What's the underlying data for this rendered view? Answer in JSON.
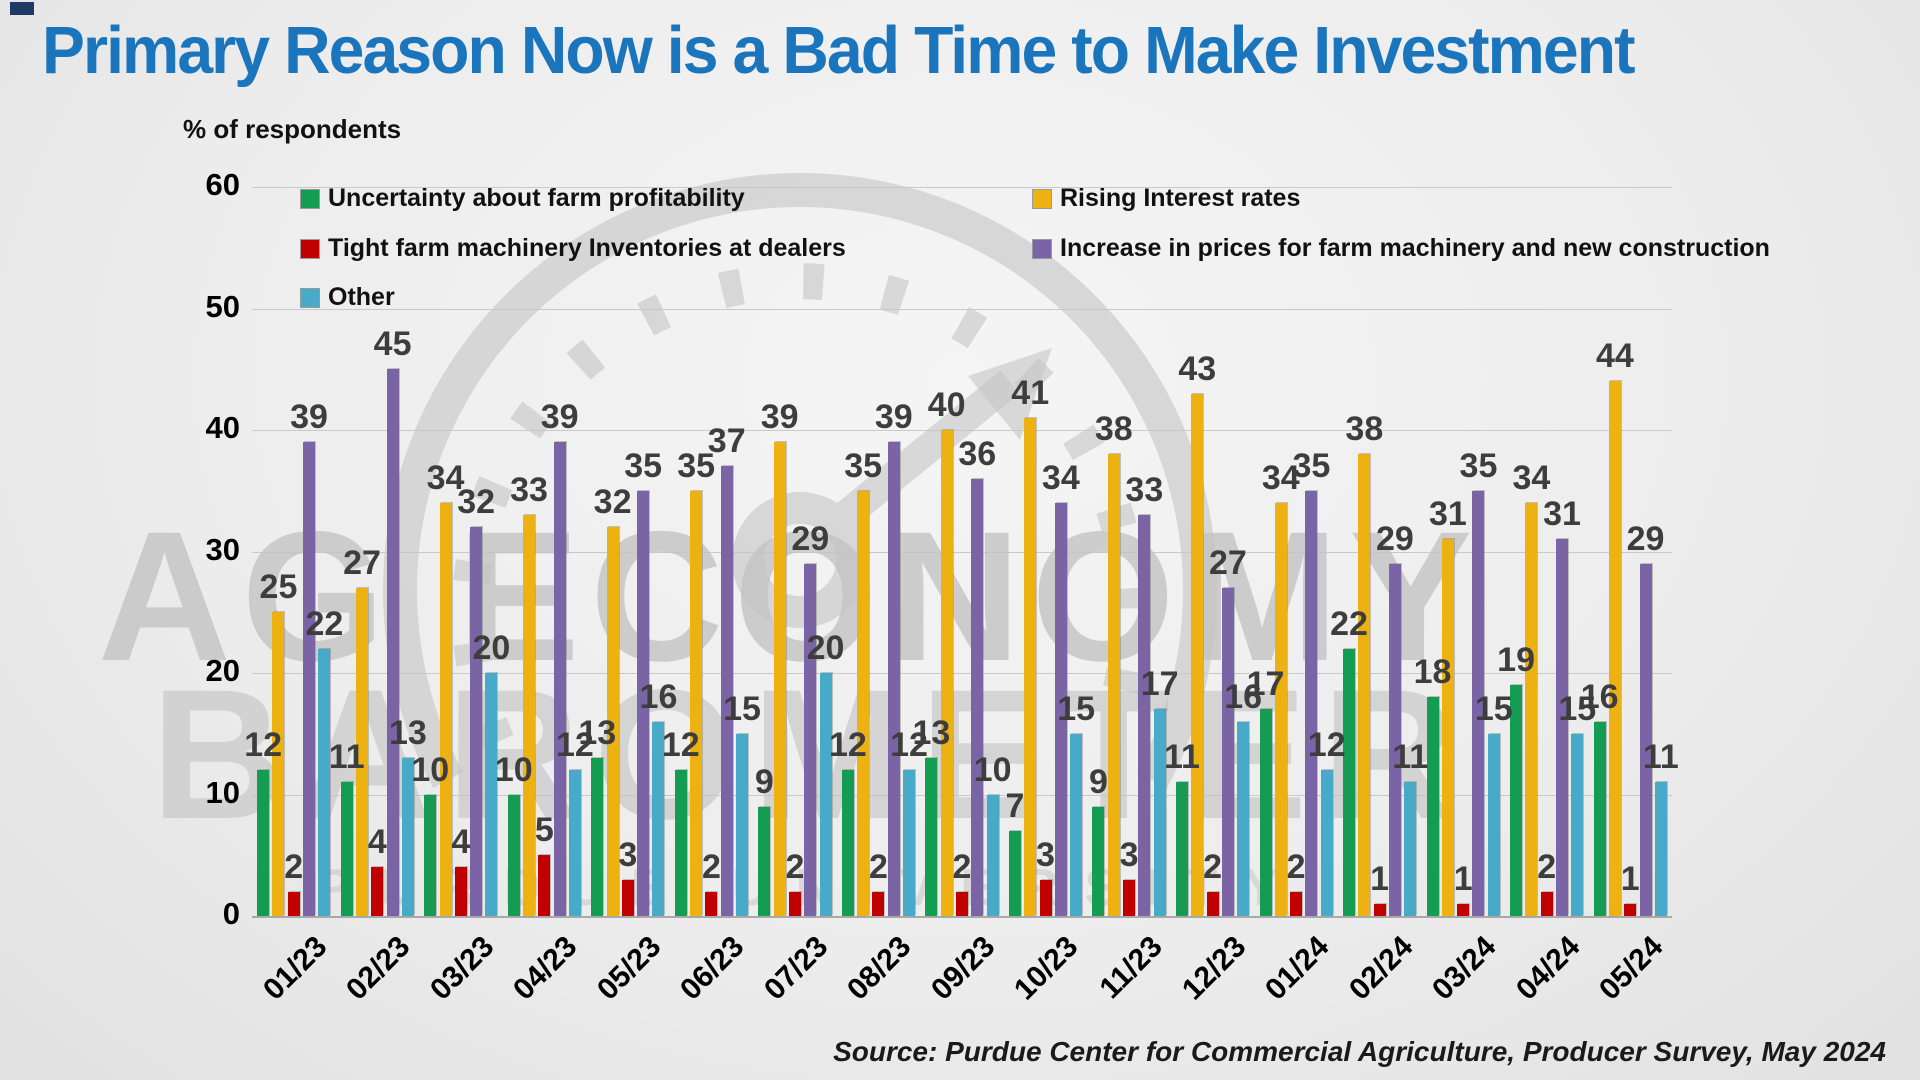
{
  "slide": {
    "title": "Primary Reason Now is a Bad Time to Make Investment",
    "source": "Source: Purdue Center for Commercial Agriculture, Producer Survey, May 2024",
    "watermark": {
      "line1": "AG ECONOMY",
      "line2": "BAROMETER",
      "line3": "PURDUE UNIVERSITY"
    }
  },
  "chart_data": {
    "type": "bar",
    "title": "Primary Reason Now is a Bad Time to Make Investment",
    "ylabel": "% of respondents",
    "ylim": [
      0,
      60
    ],
    "yticks": [
      0,
      10,
      20,
      30,
      40,
      50,
      60
    ],
    "grid": true,
    "legend_position": "top-inside-two-columns",
    "categories": [
      "01/23",
      "02/23",
      "03/23",
      "04/23",
      "05/23",
      "06/23",
      "07/23",
      "08/23",
      "09/23",
      "10/23",
      "11/23",
      "12/23",
      "01/24",
      "02/24",
      "03/24",
      "04/24",
      "05/24"
    ],
    "series": [
      {
        "key": "uncertainty",
        "name": "Uncertainty about farm profitability",
        "color": "#149c52",
        "values": [
          12,
          11,
          10,
          10,
          13,
          12,
          9,
          12,
          13,
          7,
          9,
          11,
          17,
          22,
          18,
          19,
          16
        ]
      },
      {
        "key": "rising-rates",
        "name": "Rising Interest rates",
        "color": "#edb211",
        "values": [
          25,
          27,
          34,
          33,
          32,
          35,
          39,
          35,
          40,
          41,
          38,
          43,
          34,
          38,
          31,
          34,
          44
        ]
      },
      {
        "key": "tight-inventories",
        "name": "Tight farm machinery Inventories at dealers",
        "color": "#c00000",
        "values": [
          2,
          4,
          4,
          5,
          3,
          2,
          2,
          2,
          2,
          3,
          3,
          2,
          2,
          1,
          1,
          2,
          1
        ]
      },
      {
        "key": "price-increase",
        "name": "Increase in prices for farm machinery and new construction",
        "color": "#7b64a5",
        "values": [
          39,
          45,
          32,
          39,
          35,
          37,
          29,
          39,
          36,
          34,
          33,
          27,
          35,
          29,
          35,
          31,
          29
        ]
      },
      {
        "key": "other",
        "name": "Other",
        "color": "#47aac8",
        "values": [
          22,
          13,
          20,
          12,
          16,
          15,
          20,
          12,
          10,
          15,
          17,
          16,
          12,
          11,
          15,
          15,
          11
        ]
      }
    ]
  }
}
